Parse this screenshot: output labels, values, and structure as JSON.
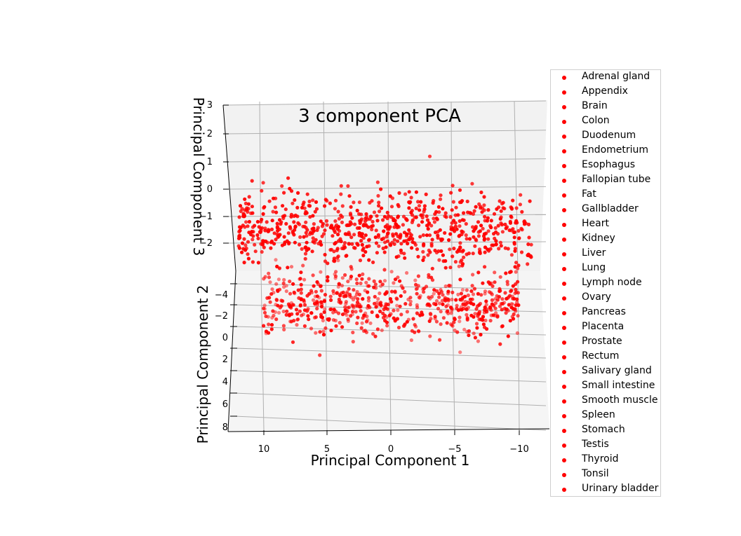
{
  "chart_data": {
    "type": "scatter",
    "projection": "3d",
    "title": "3 component PCA",
    "xlabel": "Principal Component 1",
    "ylabel": "Principal Component 2",
    "zlabel": "Principal Component 3",
    "x_ticks": [
      "10",
      "5",
      "0",
      "−5",
      "−10"
    ],
    "y_ticks": [
      "−4",
      "−2",
      "0",
      "2",
      "4",
      "6",
      "8"
    ],
    "z_ticks": [
      "3",
      "2",
      "1",
      "0",
      "−1",
      "−2"
    ],
    "xlim": [
      -12,
      13
    ],
    "ylim": [
      -6,
      8
    ],
    "zlim": [
      -3,
      3
    ],
    "grid": true,
    "marker_color": "#ff0000",
    "legend_position": "right",
    "legend": [
      "Adrenal gland",
      "Appendix",
      "Brain",
      "Colon",
      "Duodenum",
      "Endometrium",
      "Esophagus",
      "Fallopian tube",
      "Fat",
      "Gallbladder",
      "Heart",
      "Kidney",
      "Liver",
      "Lung",
      "Lymph node",
      "Ovary",
      "Pancreas",
      "Placenta",
      "Prostate",
      "Rectum",
      "Salivary gland",
      "Small intestine",
      "Smooth muscle",
      "Spleen",
      "Stomach",
      "Testis",
      "Thyroid",
      "Tonsil",
      "Urinary bladder"
    ],
    "clusters": [
      {
        "name": "",
        "x_range": [
          -11,
          12
        ],
        "y_center": -4,
        "z_center": -0.5,
        "spread": 1.1,
        "points": 750
      },
      {
        "name": "",
        "x_range": [
          -10,
          10
        ],
        "y_center": -2.5,
        "z_center": -2.6,
        "spread": 1.0,
        "points": 650
      }
    ]
  }
}
